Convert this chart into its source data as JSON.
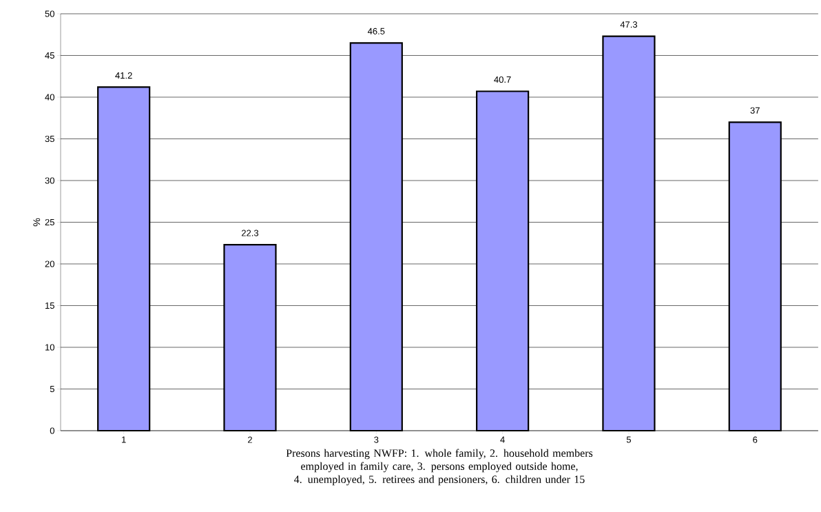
{
  "chart_data": {
    "type": "bar",
    "xlabel": "Presons harvesting NWFP: 1. whole family, 2. household members employed in family care, 3. persons employed outside home, 4. unemployed, 5. retirees and pensioners, 6. children under 15",
    "ylabel": "%",
    "categories": [
      "1",
      "2",
      "3",
      "4",
      "5",
      "6"
    ],
    "values": [
      41.2,
      22.3,
      46.5,
      40.7,
      47.3,
      37
    ],
    "color": "#9999ff",
    "ylim": [
      0,
      50
    ],
    "yticks": [
      0,
      5,
      10,
      15,
      20,
      25,
      30,
      35,
      40,
      45,
      50
    ],
    "grid": "y",
    "data_labels": true
  }
}
